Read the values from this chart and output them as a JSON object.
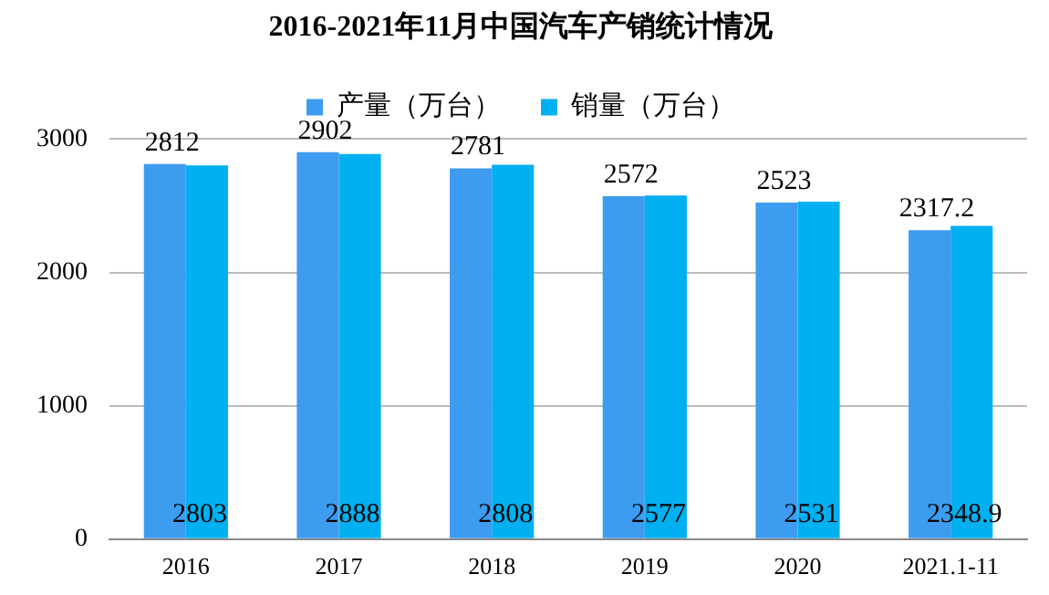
{
  "chart_data": {
    "type": "bar",
    "title": "2016-2021年11月中国汽车产销统计情况",
    "categories": [
      "2016",
      "2017",
      "2018",
      "2019",
      "2020",
      "2021.1-11"
    ],
    "series": [
      {
        "name": "产量（万台）",
        "color": "#3d9cf0",
        "values": [
          2812,
          2902,
          2781,
          2572,
          2523,
          2317.2
        ]
      },
      {
        "name": "销量（万台）",
        "color": "#00b0f0",
        "values": [
          2803,
          2888,
          2808,
          2577,
          2531,
          2348.9
        ]
      }
    ],
    "ylim": [
      0,
      3000
    ],
    "yticks": [
      0,
      1000,
      2000,
      3000
    ],
    "grid": "y",
    "legend": "top",
    "data_labels": true
  }
}
